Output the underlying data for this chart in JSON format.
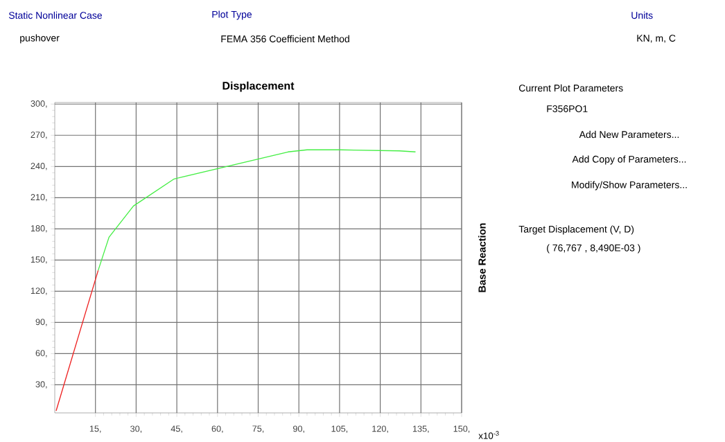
{
  "chart_data": {
    "type": "line",
    "title": "Displacement",
    "ylabel": "Base Reaction",
    "xlim": [
      0,
      150
    ],
    "ylim": [
      3,
      301.5
    ],
    "xticks": [
      {
        "value": 15,
        "label": "15,"
      },
      {
        "value": 30,
        "label": "30,"
      },
      {
        "value": 45,
        "label": "45,"
      },
      {
        "value": 60,
        "label": "60,"
      },
      {
        "value": 75,
        "label": "75,"
      },
      {
        "value": 90,
        "label": "90,"
      },
      {
        "value": 105,
        "label": "105,"
      },
      {
        "value": 120,
        "label": "120,"
      },
      {
        "value": 135,
        "label": "135,"
      },
      {
        "value": 150,
        "label": "150,"
      }
    ],
    "yticks": [
      {
        "value": 30,
        "label": "30,"
      },
      {
        "value": 60,
        "label": "60,"
      },
      {
        "value": 90,
        "label": "90,"
      },
      {
        "value": 120,
        "label": "120,"
      },
      {
        "value": 150,
        "label": "150,"
      },
      {
        "value": 180,
        "label": "180,"
      },
      {
        "value": 210,
        "label": "210,"
      },
      {
        "value": 240,
        "label": "240,"
      },
      {
        "value": 270,
        "label": "270,"
      },
      {
        "value": 300,
        "label": "300,"
      }
    ],
    "grid": true,
    "series": [
      {
        "color": "#44ee44",
        "x": [
          16,
          20,
          29,
          44,
          86,
          93,
          105,
          127,
          133
        ],
        "values": [
          140,
          172,
          202,
          228,
          254,
          256,
          256,
          255,
          254
        ]
      },
      {
        "color": "#ee2222",
        "x": [
          0.5,
          16
        ],
        "values": [
          5,
          140
        ]
      }
    ],
    "annotations": [
      "Static Nonlinear Case",
      "pushover",
      "Plot Type",
      "FEMA 356 Coefficient Method",
      "Units",
      "KN, m, C",
      "Current Plot Parameters",
      "F356PO1",
      "Add New Parameters...",
      "Add Copy of Parameters...",
      "Modify/Show Parameters...",
      "Target Displacement (V, D)",
      "( 76,767 , 8,490E-03 )",
      "x10$^{-3}$"
    ]
  }
}
